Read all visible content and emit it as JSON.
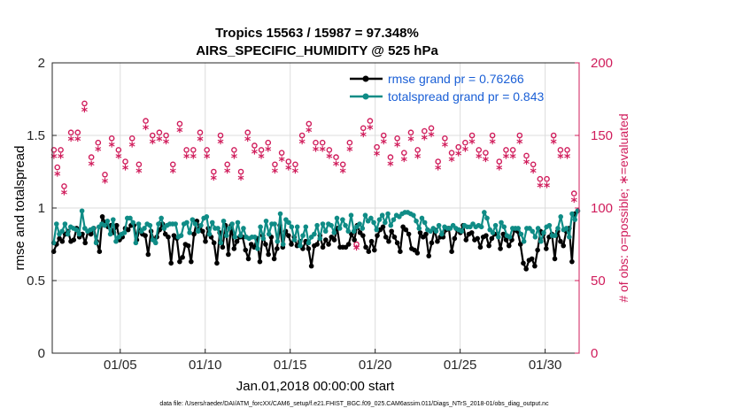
{
  "colors": {
    "rmse": "#000000",
    "spread": "#0f8c86",
    "obs": "#d01c5b",
    "grid": "#dcdcdc",
    "legend_text": "#1a5fd6"
  },
  "chart_data": {
    "type": "line",
    "title_line1": "Tropics 15563 / 15987 = 97.348%",
    "title_line2": "AIRS_SPECIFIC_HUMIDITY @ 525 hPa",
    "xlabel": "Jan.01,2018 00:00:00 start",
    "ylabel": "rmse and totalspread",
    "ylabel_right": "# of obs: o=possible; ∗=evaluated",
    "xlim": [
      1,
      32
    ],
    "ylim": [
      0,
      2
    ],
    "ylim_right": [
      0,
      200
    ],
    "yticks": [
      "0",
      "0.5",
      "1",
      "1.5",
      "2"
    ],
    "yticks_right": [
      "0",
      "50",
      "100",
      "150",
      "200"
    ],
    "xticks": [
      {
        "day": 5,
        "label": "01/05"
      },
      {
        "day": 10,
        "label": "01/10"
      },
      {
        "day": 15,
        "label": "01/15"
      },
      {
        "day": 20,
        "label": "01/20"
      },
      {
        "day": 25,
        "label": "01/25"
      },
      {
        "day": 30,
        "label": "01/30"
      }
    ],
    "footer": "data file: /Users/raeder/DAI/ATM_forcXX/CAM6_setup/f.e21.FHIST_BGC.f09_025.CAM6assim.011/Diags_NTrS_2018-01/obs_diag_output.nc",
    "legend": {
      "rmse_label": "rmse grand pr = 0.76266",
      "spread_label": "totalspread grand pr = 0.843"
    },
    "series": [
      {
        "name": "rmse",
        "values": [
          0.7,
          0.75,
          0.79,
          0.77,
          0.82,
          0.84,
          0.77,
          0.78,
          0.86,
          0.8,
          0.82,
          0.76,
          0.84,
          0.82,
          0.86,
          0.77,
          0.7,
          0.94,
          0.9,
          0.87,
          0.88,
          0.83,
          0.88,
          0.78,
          0.8,
          0.86,
          0.85,
          0.88,
          0.88,
          0.78,
          0.85,
          0.82,
          0.81,
          0.68,
          0.84,
          0.78,
          0.8,
          0.85,
          0.89,
          0.82,
          0.8,
          0.62,
          0.81,
          0.79,
          0.63,
          0.66,
          0.75,
          0.74,
          0.63,
          0.82,
          0.91,
          0.86,
          0.84,
          0.77,
          0.86,
          0.8,
          0.76,
          0.62,
          0.83,
          0.73,
          0.88,
          0.68,
          0.88,
          0.72,
          0.77,
          0.8,
          0.8,
          0.71,
          0.65,
          0.75,
          0.73,
          0.79,
          0.63,
          0.81,
          0.75,
          0.68,
          0.8,
          0.65,
          0.72,
          0.88,
          0.73,
          0.84,
          0.81,
          0.75,
          0.8,
          0.74,
          0.77,
          0.72,
          0.77,
          0.72,
          0.6,
          0.74,
          0.75,
          0.81,
          0.73,
          0.78,
          0.75,
          0.8,
          0.78,
          0.86,
          0.73,
          0.73,
          0.73,
          0.75,
          0.82,
          0.78,
          0.88,
          0.83,
          0.81,
          0.73,
          0.7,
          0.77,
          0.71,
          0.81,
          0.85,
          0.87,
          0.8,
          0.77,
          0.84,
          0.8,
          0.76,
          0.7,
          0.87,
          0.85,
          0.82,
          0.72,
          0.71,
          0.69,
          0.83,
          0.8,
          0.82,
          0.67,
          0.76,
          0.85,
          0.77,
          0.8,
          0.8,
          0.85,
          0.86,
          0.7,
          0.79,
          0.85,
          0.83,
          0.88,
          0.78,
          0.82,
          0.83,
          0.78,
          0.79,
          0.73,
          0.8,
          0.81,
          0.74,
          0.79,
          0.82,
          0.82,
          0.72,
          0.82,
          0.78,
          0.74,
          0.78,
          0.85,
          0.84,
          0.75,
          0.62,
          0.58,
          0.64,
          0.65,
          0.6,
          0.71,
          0.84,
          0.82,
          0.72,
          0.8,
          0.82,
          0.65,
          0.84,
          0.77,
          0.74,
          0.84,
          0.86,
          0.63,
          0.96,
          0.98
        ]
      },
      {
        "name": "totalspread",
        "values": [
          0.76,
          0.89,
          0.82,
          0.84,
          0.89,
          0.82,
          0.87,
          0.86,
          0.85,
          0.82,
          0.98,
          0.86,
          0.84,
          0.85,
          0.86,
          0.76,
          0.87,
          0.89,
          0.88,
          0.91,
          0.82,
          0.92,
          0.77,
          0.8,
          0.82,
          0.83,
          0.93,
          0.93,
          0.9,
          0.76,
          0.89,
          0.84,
          0.86,
          0.89,
          0.88,
          0.78,
          0.76,
          0.89,
          0.93,
          0.86,
          0.88,
          0.89,
          0.89,
          0.89,
          0.8,
          0.81,
          0.89,
          0.9,
          0.83,
          0.92,
          0.89,
          0.84,
          0.88,
          0.93,
          0.94,
          0.82,
          0.9,
          0.86,
          0.86,
          0.76,
          0.91,
          0.81,
          0.86,
          0.89,
          0.8,
          0.9,
          0.81,
          0.86,
          0.8,
          0.79,
          0.8,
          0.8,
          0.72,
          0.87,
          0.79,
          0.91,
          0.82,
          0.89,
          0.89,
          0.77,
          0.96,
          0.75,
          0.92,
          0.9,
          0.87,
          0.78,
          0.87,
          0.74,
          0.81,
          0.87,
          0.76,
          0.8,
          0.82,
          0.88,
          0.79,
          0.89,
          0.84,
          0.89,
          0.88,
          0.83,
          0.93,
          0.86,
          0.92,
          0.88,
          0.84,
          0.95,
          0.84,
          0.87,
          0.89,
          0.86,
          0.95,
          0.91,
          0.93,
          0.9,
          0.85,
          0.92,
          0.95,
          0.9,
          0.96,
          0.88,
          0.92,
          0.95,
          0.94,
          0.96,
          0.97,
          0.97,
          0.96,
          0.95,
          0.91,
          0.86,
          0.93,
          0.9,
          0.85,
          0.84,
          0.86,
          0.84,
          0.88,
          0.82,
          0.87,
          0.86,
          0.86,
          0.88,
          0.86,
          0.85,
          0.84,
          0.88,
          0.87,
          0.87,
          0.89,
          0.87,
          0.88,
          0.87,
          0.97,
          0.93,
          0.85,
          0.83,
          0.88,
          0.8,
          0.9,
          0.87,
          0.81,
          0.8,
          0.86,
          0.86,
          0.86,
          0.82,
          0.77,
          0.86,
          0.86,
          0.84,
          0.8,
          0.86,
          0.77,
          0.83,
          0.87,
          0.88,
          0.81,
          0.81,
          0.86,
          0.94,
          0.85,
          0.86,
          0.8,
          0.96,
          0.92,
          0.98
        ]
      },
      {
        "name": "obs_possible",
        "points": [
          [
            1.1,
            140
          ],
          [
            1.3,
            128
          ],
          [
            1.5,
            140
          ],
          [
            1.7,
            115
          ],
          [
            2.1,
            152
          ],
          [
            2.5,
            152
          ],
          [
            2.9,
            172
          ],
          [
            3.3,
            135
          ],
          [
            3.7,
            145
          ],
          [
            4.1,
            123
          ],
          [
            4.5,
            148
          ],
          [
            4.9,
            140
          ],
          [
            5.3,
            132
          ],
          [
            5.7,
            148
          ],
          [
            6.1,
            130
          ],
          [
            6.5,
            160
          ],
          [
            6.9,
            150
          ],
          [
            7.3,
            152
          ],
          [
            7.7,
            150
          ],
          [
            8.1,
            130
          ],
          [
            8.5,
            158
          ],
          [
            8.9,
            140
          ],
          [
            9.3,
            140
          ],
          [
            9.7,
            152
          ],
          [
            10.1,
            140
          ],
          [
            10.5,
            125
          ],
          [
            10.9,
            150
          ],
          [
            11.3,
            130
          ],
          [
            11.7,
            140
          ],
          [
            12.1,
            125
          ],
          [
            12.5,
            152
          ],
          [
            12.9,
            143
          ],
          [
            13.3,
            140
          ],
          [
            13.7,
            145
          ],
          [
            14.1,
            130
          ],
          [
            14.5,
            138
          ],
          [
            14.9,
            132
          ],
          [
            15.3,
            130
          ],
          [
            15.7,
            150
          ],
          [
            16.1,
            158
          ],
          [
            16.5,
            145
          ],
          [
            16.9,
            145
          ],
          [
            17.3,
            140
          ],
          [
            17.7,
            135
          ],
          [
            18.1,
            130
          ],
          [
            18.5,
            145
          ],
          [
            18.9,
            75
          ],
          [
            19.3,
            155
          ],
          [
            19.7,
            160
          ],
          [
            20.1,
            142
          ],
          [
            20.5,
            150
          ],
          [
            20.9,
            135
          ],
          [
            21.3,
            148
          ],
          [
            21.7,
            138
          ],
          [
            22.1,
            152
          ],
          [
            22.5,
            140
          ],
          [
            22.9,
            153
          ],
          [
            23.3,
            155
          ],
          [
            23.7,
            132
          ],
          [
            24.1,
            148
          ],
          [
            24.5,
            138
          ],
          [
            24.9,
            142
          ],
          [
            25.3,
            145
          ],
          [
            25.7,
            150
          ],
          [
            26.1,
            140
          ],
          [
            26.5,
            138
          ],
          [
            26.9,
            150
          ],
          [
            27.3,
            132
          ],
          [
            27.7,
            140
          ],
          [
            28.1,
            140
          ],
          [
            28.5,
            150
          ],
          [
            28.9,
            136
          ],
          [
            29.3,
            130
          ],
          [
            29.7,
            120
          ],
          [
            30.1,
            120
          ],
          [
            30.5,
            150
          ],
          [
            30.9,
            140
          ],
          [
            31.3,
            140
          ],
          [
            31.7,
            110
          ]
        ]
      },
      {
        "name": "obs_evaluated",
        "points": [
          [
            1.1,
            135
          ],
          [
            1.3,
            123
          ],
          [
            1.5,
            135
          ],
          [
            1.7,
            110
          ],
          [
            2.1,
            147
          ],
          [
            2.5,
            147
          ],
          [
            2.9,
            167
          ],
          [
            3.3,
            130
          ],
          [
            3.7,
            140
          ],
          [
            4.1,
            118
          ],
          [
            4.5,
            143
          ],
          [
            4.9,
            135
          ],
          [
            5.3,
            127
          ],
          [
            5.7,
            143
          ],
          [
            6.1,
            125
          ],
          [
            6.5,
            155
          ],
          [
            6.9,
            145
          ],
          [
            7.3,
            147
          ],
          [
            7.7,
            145
          ],
          [
            8.1,
            125
          ],
          [
            8.5,
            153
          ],
          [
            8.9,
            135
          ],
          [
            9.3,
            135
          ],
          [
            9.7,
            147
          ],
          [
            10.1,
            135
          ],
          [
            10.5,
            120
          ],
          [
            10.9,
            145
          ],
          [
            11.3,
            125
          ],
          [
            11.7,
            135
          ],
          [
            12.1,
            120
          ],
          [
            12.5,
            147
          ],
          [
            12.9,
            138
          ],
          [
            13.3,
            135
          ],
          [
            13.7,
            140
          ],
          [
            14.1,
            125
          ],
          [
            14.5,
            133
          ],
          [
            14.9,
            127
          ],
          [
            15.3,
            125
          ],
          [
            15.7,
            145
          ],
          [
            16.1,
            153
          ],
          [
            16.5,
            140
          ],
          [
            16.9,
            140
          ],
          [
            17.3,
            135
          ],
          [
            17.7,
            130
          ],
          [
            18.1,
            125
          ],
          [
            18.5,
            140
          ],
          [
            18.9,
            72
          ],
          [
            19.3,
            150
          ],
          [
            19.7,
            155
          ],
          [
            20.1,
            137
          ],
          [
            20.5,
            145
          ],
          [
            20.9,
            130
          ],
          [
            21.3,
            143
          ],
          [
            21.7,
            133
          ],
          [
            22.1,
            147
          ],
          [
            22.5,
            135
          ],
          [
            22.9,
            148
          ],
          [
            23.3,
            150
          ],
          [
            23.7,
            127
          ],
          [
            24.1,
            143
          ],
          [
            24.5,
            133
          ],
          [
            24.9,
            137
          ],
          [
            25.3,
            140
          ],
          [
            25.7,
            145
          ],
          [
            26.1,
            135
          ],
          [
            26.5,
            133
          ],
          [
            26.9,
            145
          ],
          [
            27.3,
            127
          ],
          [
            27.7,
            135
          ],
          [
            28.1,
            135
          ],
          [
            28.5,
            145
          ],
          [
            28.9,
            131
          ],
          [
            29.3,
            125
          ],
          [
            29.7,
            115
          ],
          [
            30.1,
            115
          ],
          [
            30.5,
            145
          ],
          [
            30.9,
            135
          ],
          [
            31.3,
            135
          ],
          [
            31.7,
            105
          ]
        ]
      }
    ]
  }
}
